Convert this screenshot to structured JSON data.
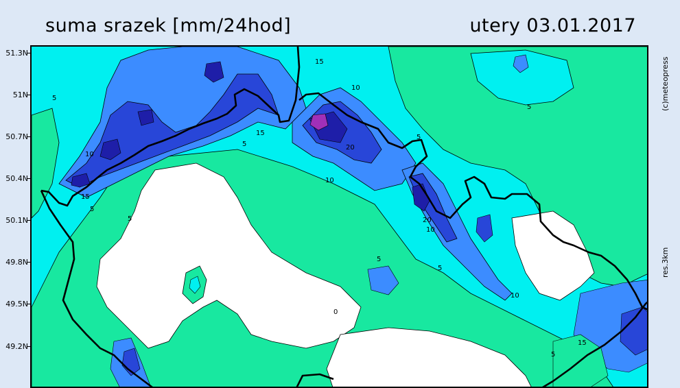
{
  "map": {
    "title": "suma srazek [mm/24hod]",
    "date": "utery 03.01.2017",
    "copyright": "(c)meteopress",
    "resolution": "res.3km",
    "lat_labels": [
      "51.3N",
      "51N",
      "50.7N",
      "50.4N",
      "50.1N",
      "49.8N",
      "49.5N",
      "49.2N"
    ],
    "contour_labels": [
      "5",
      "5",
      "5",
      "5",
      "5",
      "5",
      "5",
      "5",
      "5",
      "10",
      "10",
      "10",
      "10",
      "10",
      "15",
      "15",
      "15",
      "15",
      "20",
      "20",
      "0"
    ],
    "colors": {
      "zero": "#ffffff",
      "low": "#18e8a0",
      "mid": "#00f0f0",
      "high": "#3c8cff",
      "very_high": "#2846d8",
      "extreme": "#1e1ea8",
      "peak": "#a030b8",
      "border": "#000000"
    }
  }
}
